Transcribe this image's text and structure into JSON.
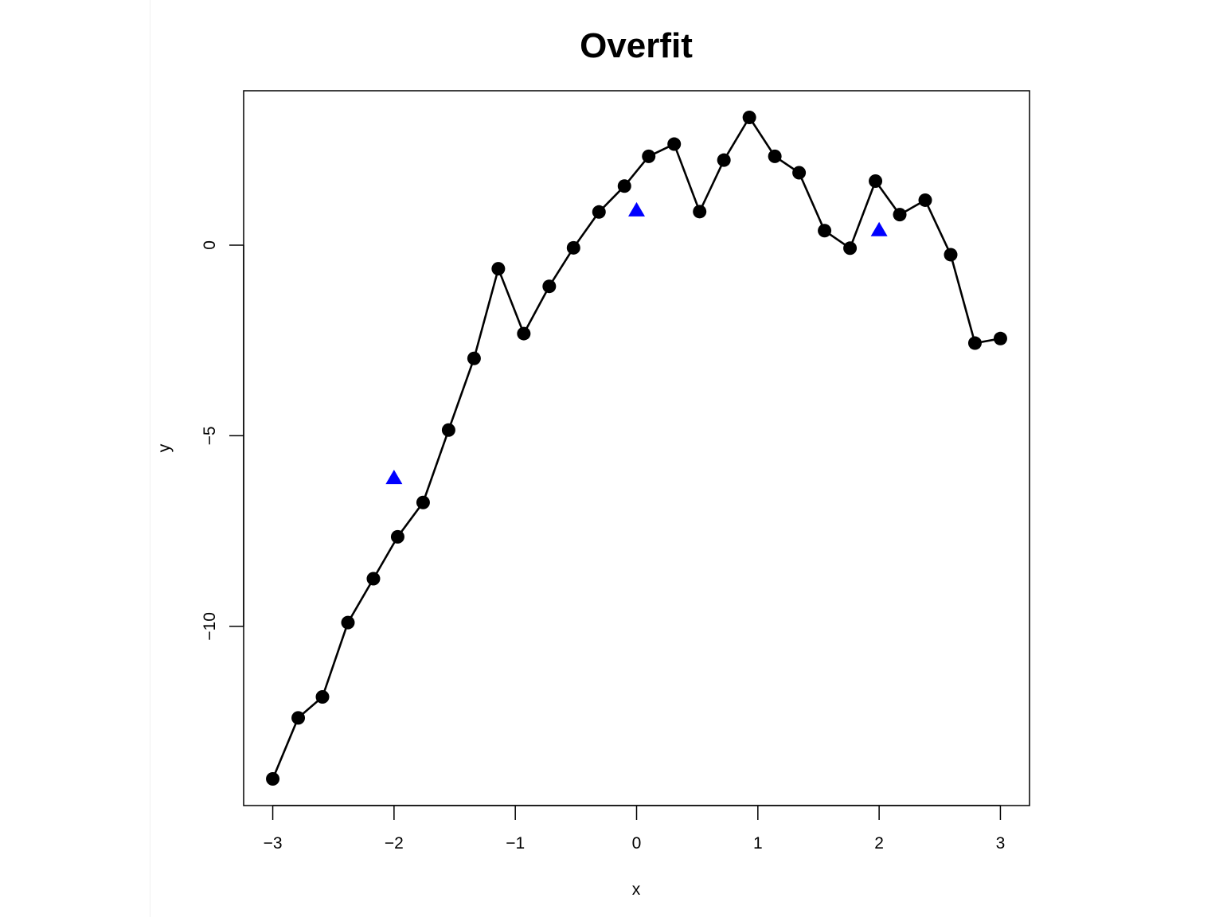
{
  "chart_data": {
    "type": "scatter",
    "title": "Overfit",
    "xlabel": "x",
    "ylabel": "y",
    "xlim": [
      -3.24,
      3.24
    ],
    "ylim": [
      -14.7,
      4.05
    ],
    "x_ticks": [
      -3,
      -2,
      -1,
      0,
      1,
      2,
      3
    ],
    "x_tick_labels": [
      "−3",
      "−2",
      "−1",
      "0",
      "1",
      "2",
      "3"
    ],
    "y_ticks": [
      0,
      -5,
      -10
    ],
    "y_tick_labels": [
      "0",
      "−5",
      "−10"
    ],
    "grid": false,
    "series": [
      {
        "type": "line-with-points",
        "marker": "filled-circle",
        "color": "#000000",
        "x": [
          -3.0,
          -2.79,
          -2.59,
          -2.38,
          -2.17,
          -1.97,
          -1.76,
          -1.55,
          -1.34,
          -1.14,
          -0.93,
          -0.72,
          -0.52,
          -0.31,
          -0.1,
          0.1,
          0.31,
          0.52,
          0.72,
          0.93,
          1.14,
          1.34,
          1.55,
          1.76,
          1.97,
          2.17,
          2.38,
          2.59,
          2.79,
          3.0
        ],
        "y": [
          -14.0,
          -12.4,
          -11.85,
          -9.9,
          -8.75,
          -7.65,
          -6.75,
          -4.85,
          -2.97,
          -0.62,
          -2.32,
          -1.08,
          -0.07,
          0.87,
          1.55,
          2.33,
          2.65,
          0.88,
          2.23,
          3.35,
          2.33,
          1.9,
          0.38,
          -0.08,
          1.68,
          0.8,
          1.18,
          -0.25,
          -2.57,
          -2.45
        ]
      },
      {
        "type": "points",
        "marker": "filled-triangle",
        "color": "#0000ff",
        "x": [
          -2,
          0,
          2
        ],
        "y": [
          -6.1,
          0.92,
          0.4
        ]
      }
    ]
  }
}
